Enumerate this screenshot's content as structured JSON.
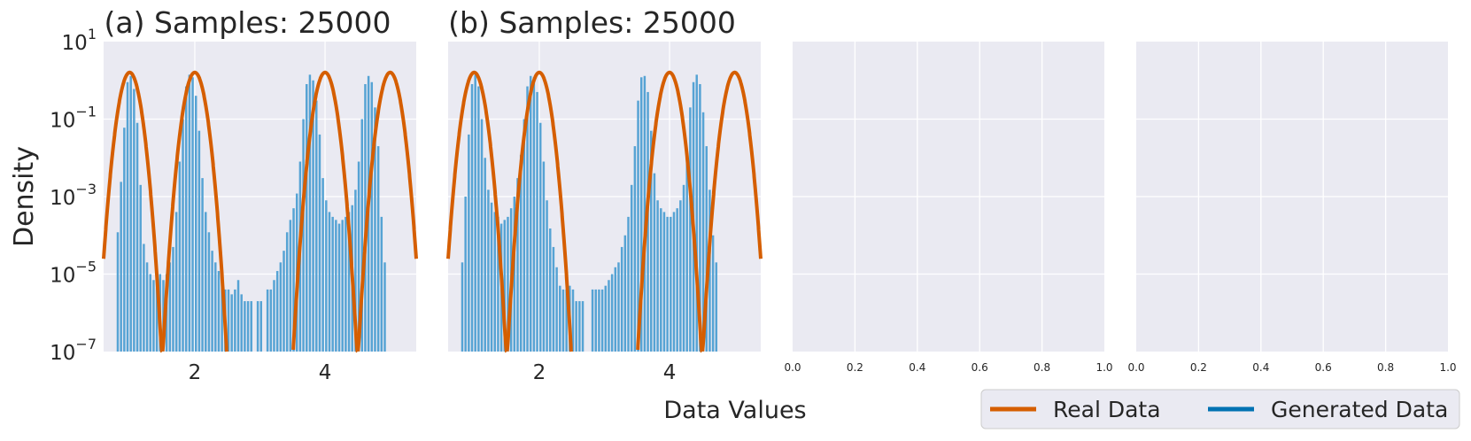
{
  "figure": {
    "ylabel": "Density",
    "xlabel": "Data Values"
  },
  "legend": {
    "items": [
      {
        "label": "Real Data",
        "color": "#d55e00"
      },
      {
        "label": "Generated Data",
        "color": "#0072b2"
      }
    ]
  },
  "colors": {
    "panel_bg": "#eaeaf2",
    "bar": "#56a3d4",
    "real": "#d55e00",
    "grid": "#ffffff"
  },
  "chart_data": [
    {
      "type": "bar",
      "title": "(a) Samples: 25000",
      "yscale": "log",
      "ylim": [
        1e-07,
        10
      ],
      "xlim": [
        0.6,
        5.4
      ],
      "xticks": [
        "2",
        "4"
      ],
      "yticks": [
        "10^1",
        "10^-1",
        "10^-3",
        "10^-5",
        "10^-7"
      ],
      "series": [
        {
          "name": "Real Data",
          "kind": "line",
          "peaks": [
            1.0,
            2.0,
            4.0,
            5.0
          ],
          "peak_density": 1.6,
          "sigma": 0.085
        },
        {
          "name": "Generated Data",
          "kind": "hist",
          "bins": [
            [
              0.82,
              0.00012
            ],
            [
              0.87,
              0.0024
            ],
            [
              0.92,
              0.06
            ],
            [
              0.97,
              0.9
            ],
            [
              1.02,
              1.3
            ],
            [
              1.07,
              0.6
            ],
            [
              1.12,
              0.08
            ],
            [
              1.17,
              0.002
            ],
            [
              1.22,
              6e-05
            ],
            [
              1.27,
              2e-05
            ],
            [
              1.32,
              1e-05
            ],
            [
              1.37,
              7e-06
            ],
            [
              1.42,
              1e-05
            ],
            [
              1.47,
              1e-05
            ],
            [
              1.52,
              7e-06
            ],
            [
              1.57,
              1e-05
            ],
            [
              1.62,
              2e-05
            ],
            [
              1.67,
              5e-05
            ],
            [
              1.72,
              0.0004
            ],
            [
              1.77,
              0.008
            ],
            [
              1.82,
              0.1
            ],
            [
              1.87,
              0.7
            ],
            [
              1.92,
              1.4
            ],
            [
              1.97,
              1.2
            ],
            [
              2.02,
              0.4
            ],
            [
              2.07,
              0.05
            ],
            [
              2.12,
              0.003
            ],
            [
              2.17,
              0.0004
            ],
            [
              2.22,
              0.00012
            ],
            [
              2.27,
              4e-05
            ],
            [
              2.32,
              2e-05
            ],
            [
              2.37,
              1.2e-05
            ],
            [
              2.42,
              7e-06
            ],
            [
              2.47,
              4e-06
            ],
            [
              2.52,
              4e-06
            ],
            [
              2.57,
              3e-06
            ],
            [
              2.62,
              4e-06
            ],
            [
              2.67,
              7e-06
            ],
            [
              2.72,
              3e-06
            ],
            [
              2.77,
              2e-06
            ],
            [
              2.82,
              2e-06
            ],
            [
              2.87,
              2e-06
            ],
            [
              2.97,
              2e-06
            ],
            [
              3.02,
              2e-06
            ],
            [
              3.12,
              4e-06
            ],
            [
              3.17,
              4e-06
            ],
            [
              3.22,
              7e-06
            ],
            [
              3.27,
              1.2e-05
            ],
            [
              3.32,
              2e-05
            ],
            [
              3.37,
              4e-05
            ],
            [
              3.42,
              0.00012
            ],
            [
              3.47,
              0.00025
            ],
            [
              3.52,
              0.0005
            ],
            [
              3.57,
              0.0012
            ],
            [
              3.62,
              0.008
            ],
            [
              3.67,
              0.1
            ],
            [
              3.72,
              0.8
            ],
            [
              3.77,
              1.4
            ],
            [
              3.82,
              1.0
            ],
            [
              3.87,
              0.3
            ],
            [
              3.92,
              0.04
            ],
            [
              3.97,
              0.003
            ],
            [
              4.02,
              0.0008
            ],
            [
              4.07,
              0.0004
            ],
            [
              4.12,
              0.0003
            ],
            [
              4.17,
              0.00025
            ],
            [
              4.22,
              0.0002
            ],
            [
              4.27,
              0.00025
            ],
            [
              4.32,
              0.0003
            ],
            [
              4.37,
              0.0004
            ],
            [
              4.42,
              0.0006
            ],
            [
              4.47,
              0.0015
            ],
            [
              4.52,
              0.008
            ],
            [
              4.57,
              0.1
            ],
            [
              4.62,
              0.8
            ],
            [
              4.67,
              1.3
            ],
            [
              4.72,
              0.9
            ],
            [
              4.77,
              0.2
            ],
            [
              4.82,
              0.02
            ],
            [
              4.87,
              0.0003
            ],
            [
              4.92,
              2e-05
            ]
          ]
        }
      ]
    },
    {
      "type": "bar",
      "title": "(b) Samples: 25000",
      "yscale": "log",
      "ylim": [
        1e-07,
        10
      ],
      "xlim": [
        0.6,
        5.4
      ],
      "xticks": [
        "2",
        "4"
      ],
      "series": [
        {
          "name": "Real Data",
          "kind": "line",
          "peaks": [
            1.0,
            2.0,
            4.0,
            5.0
          ],
          "peak_density": 1.6,
          "sigma": 0.085
        },
        {
          "name": "Generated Data",
          "kind": "hist",
          "bins": [
            [
              0.82,
              2e-05
            ],
            [
              0.87,
              0.001
            ],
            [
              0.92,
              0.04
            ],
            [
              0.97,
              0.8
            ],
            [
              1.02,
              1.4
            ],
            [
              1.07,
              0.7
            ],
            [
              1.12,
              0.1
            ],
            [
              1.17,
              0.01
            ],
            [
              1.22,
              0.0015
            ],
            [
              1.27,
              0.0007
            ],
            [
              1.32,
              0.0004
            ],
            [
              1.37,
              0.0003
            ],
            [
              1.42,
              0.0002
            ],
            [
              1.47,
              0.00025
            ],
            [
              1.52,
              0.0003
            ],
            [
              1.57,
              0.0005
            ],
            [
              1.62,
              0.001
            ],
            [
              1.67,
              0.003
            ],
            [
              1.72,
              0.012
            ],
            [
              1.77,
              0.1
            ],
            [
              1.82,
              0.7
            ],
            [
              1.87,
              1.3
            ],
            [
              1.92,
              1.2
            ],
            [
              1.97,
              0.5
            ],
            [
              2.02,
              0.08
            ],
            [
              2.07,
              0.008
            ],
            [
              2.12,
              0.0008
            ],
            [
              2.17,
              0.00015
            ],
            [
              2.22,
              5e-05
            ],
            [
              2.27,
              1.5e-05
            ],
            [
              2.32,
              5e-06
            ],
            [
              2.37,
              4e-06
            ],
            [
              2.42,
              4e-06
            ],
            [
              2.47,
              5e-06
            ],
            [
              2.52,
              4e-06
            ],
            [
              2.57,
              2e-06
            ],
            [
              2.62,
              2e-06
            ],
            [
              2.67,
              2e-06
            ],
            [
              2.82,
              4e-06
            ],
            [
              2.87,
              4e-06
            ],
            [
              2.92,
              4e-06
            ],
            [
              2.97,
              4e-06
            ],
            [
              3.02,
              5e-06
            ],
            [
              3.07,
              7e-06
            ],
            [
              3.12,
              1e-05
            ],
            [
              3.17,
              1.5e-05
            ],
            [
              3.22,
              2e-05
            ],
            [
              3.27,
              5e-05
            ],
            [
              3.32,
              0.0001
            ],
            [
              3.37,
              0.0003
            ],
            [
              3.42,
              0.002
            ],
            [
              3.47,
              0.02
            ],
            [
              3.52,
              0.3
            ],
            [
              3.57,
              1.2
            ],
            [
              3.62,
              1.3
            ],
            [
              3.67,
              0.5
            ],
            [
              3.72,
              0.05
            ],
            [
              3.77,
              0.004
            ],
            [
              3.82,
              0.0008
            ],
            [
              3.87,
              0.0005
            ],
            [
              3.92,
              0.0004
            ],
            [
              3.97,
              0.0003
            ],
            [
              4.02,
              0.0003
            ],
            [
              4.07,
              0.0004
            ],
            [
              4.12,
              0.0005
            ],
            [
              4.17,
              0.0008
            ],
            [
              4.22,
              0.002
            ],
            [
              4.27,
              0.015
            ],
            [
              4.32,
              0.2
            ],
            [
              4.37,
              0.9
            ],
            [
              4.42,
              1.4
            ],
            [
              4.47,
              0.8
            ],
            [
              4.52,
              0.15
            ],
            [
              4.57,
              0.02
            ],
            [
              4.62,
              0.0015
            ],
            [
              4.67,
              0.0001
            ],
            [
              4.72,
              2e-05
            ]
          ]
        }
      ]
    },
    {
      "type": "bar",
      "title": "",
      "xlim": [
        0,
        1
      ],
      "ylim": [
        0,
        1
      ],
      "xticks": [
        "0.0",
        "0.2",
        "0.4",
        "0.6",
        "0.8",
        "1.0"
      ],
      "series": []
    },
    {
      "type": "bar",
      "title": "",
      "xlim": [
        0,
        1
      ],
      "ylim": [
        0,
        1
      ],
      "xticks": [
        "0.0",
        "0.2",
        "0.4",
        "0.6",
        "0.8",
        "1.0"
      ],
      "series": []
    }
  ]
}
